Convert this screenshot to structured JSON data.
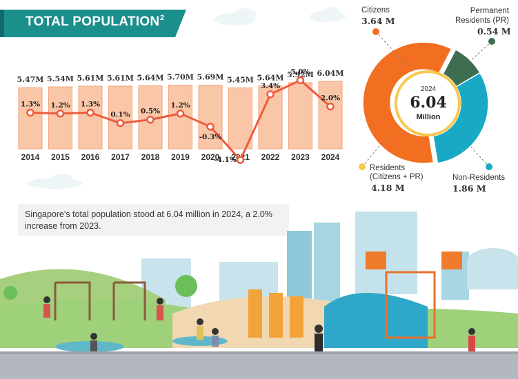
{
  "title": {
    "text": "TOTAL POPULATION",
    "footnote": "2",
    "banner_color": "#1a8f8c"
  },
  "chart_data": [
    {
      "type": "bar",
      "categories": [
        "2014",
        "2015",
        "2016",
        "2017",
        "2018",
        "2019",
        "2020",
        "2021",
        "2022",
        "2023",
        "2024"
      ],
      "series": [
        {
          "values": [
            5.47,
            5.54,
            5.61,
            5.61,
            5.64,
            5.7,
            5.69,
            5.45,
            5.64,
            5.92,
            6.04
          ]
        }
      ],
      "value_labels": [
        "5.47M",
        "5.54M",
        "5.61M",
        "5.61M",
        "5.64M",
        "5.70M",
        "5.69M",
        "5.45M",
        "5.64M",
        "5.92M",
        "6.04M"
      ],
      "ylim": [
        0,
        6.3
      ],
      "bar_color": "#f9c7a8"
    },
    {
      "type": "line",
      "categories": [
        "2014",
        "2015",
        "2016",
        "2017",
        "2018",
        "2019",
        "2020",
        "2021",
        "2022",
        "2023",
        "2024"
      ],
      "series": [
        {
          "values": [
            1.3,
            1.2,
            1.3,
            0.1,
            0.5,
            1.2,
            -0.3,
            -4.1,
            3.4,
            5.0,
            2.0
          ]
        }
      ],
      "value_labels": [
        "1.3%",
        "1.2%",
        "1.3%",
        "0.1%",
        "0.5%",
        "1.2%",
        "-0.3%",
        "-4.1%",
        "3.4%",
        "5.0%",
        "2.0%"
      ],
      "ylim": [
        -4.5,
        5.5
      ],
      "line_color": "#ef5a3c"
    },
    {
      "type": "pie",
      "center_year": "2024",
      "center_value": "6.04",
      "center_unit": "Million",
      "slices": [
        {
          "label": "Citizens",
          "value": 3.64,
          "value_text": "3.64 M",
          "color": "#f26f21",
          "dot_color": "#f26f21"
        },
        {
          "label": "Permanent Residents (PR)",
          "value": 0.54,
          "value_text": "0.54 M",
          "color": "#3d6e52",
          "dot_color": "#3d6e52"
        },
        {
          "label": "Non-Residents",
          "value": 1.86,
          "value_text": "1.86 M",
          "color": "#19a9c5",
          "dot_color": "#19a9c5"
        }
      ],
      "group": {
        "label_line1": "Residents",
        "label_line2": "(Citizens + PR)",
        "value_text": "4.18 M",
        "color": "#f8c84f"
      }
    }
  ],
  "caption": "Singapore's total population stood at 6.04 million in 2024, a 2.0% increase from 2023."
}
